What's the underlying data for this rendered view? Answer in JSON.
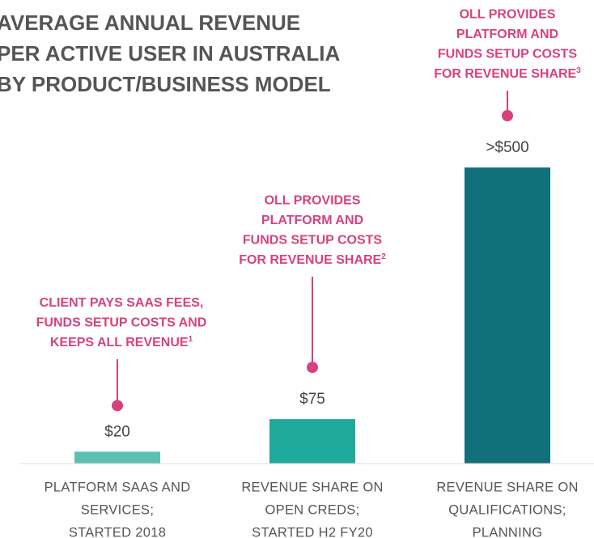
{
  "chart_data": {
    "type": "bar",
    "title": [
      "AVERAGE ANNUAL REVENUE",
      "PER ACTIVE USER IN AUSTRALIA",
      "BY PRODUCT/BUSINESS MODEL"
    ],
    "categories": [
      [
        "PLATFORM SAAS AND",
        "SERVICES;",
        "STARTED 2018"
      ],
      [
        "REVENUE SHARE ON",
        "OPEN CREDS;",
        "STARTED H2 FY20"
      ],
      [
        "REVENUE SHARE ON",
        "QUALIFICATIONS;",
        "PLANNING"
      ]
    ],
    "values": [
      20,
      75,
      500
    ],
    "value_labels": [
      "$20",
      "$75",
      ">$500"
    ],
    "colors": [
      "#5cc0b1",
      "#1fa99d",
      "#12707b"
    ],
    "annotations": [
      {
        "lines": [
          "CLIENT PAYS SAAS FEES,",
          "FUNDS SETUP COSTS AND",
          "KEEPS ALL REVENUE"
        ],
        "note": "1"
      },
      {
        "lines": [
          "OLL PROVIDES",
          "PLATFORM AND",
          "FUNDS SETUP COSTS",
          "FOR REVENUE SHARE"
        ],
        "note": "2"
      },
      {
        "lines": [
          "OLL PROVIDES",
          "PLATFORM AND",
          "FUNDS SETUP COSTS",
          "FOR REVENUE SHARE"
        ],
        "note": "3"
      }
    ],
    "ylim": [
      0,
      500
    ]
  }
}
